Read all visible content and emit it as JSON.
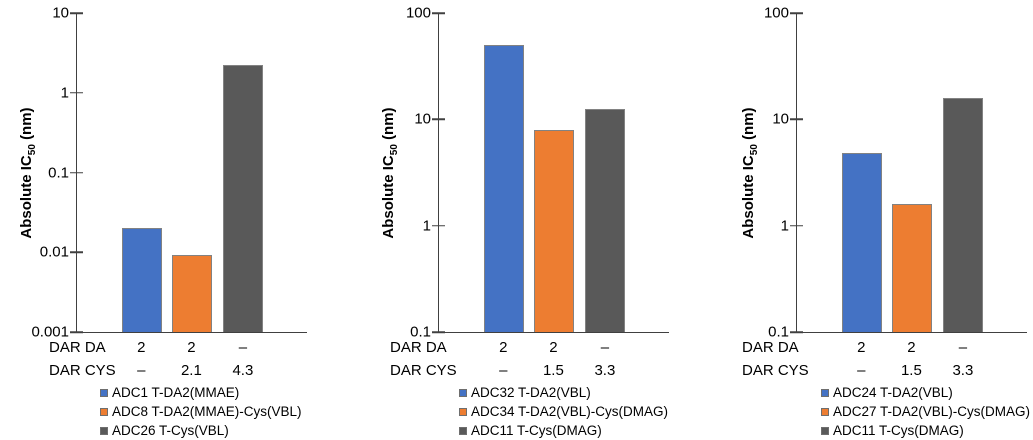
{
  "chart_data": [
    {
      "type": "bar",
      "log_scale": true,
      "grid": false,
      "legend_position": "bottom",
      "ylabel_prefix": "Absolute IC",
      "ylabel_sub": "50",
      "ylabel_suffix": " (nm)",
      "xlabel": "",
      "ylim": [
        0.001,
        10
      ],
      "yticks": [
        "10",
        "1",
        "0.1",
        "0.01",
        "0.001"
      ],
      "categories": [
        "ADC1 T-DA2(MMAE)",
        "ADC8 T-DA2(MMAE)-Cys(VBL)",
        "ADC26 T-Cys(VBL)"
      ],
      "values": [
        0.02,
        0.0093,
        2.2
      ],
      "bar_colors": [
        "#4472c4",
        "#ed7d31",
        "#595959"
      ],
      "rows": [
        {
          "label": "DAR DA",
          "values": [
            "2",
            "2",
            "–"
          ]
        },
        {
          "label": "DAR CYS",
          "values": [
            "–",
            "2.1",
            "4.3"
          ]
        }
      ],
      "legend": [
        {
          "label": "ADC1 T-DA2(MMAE)",
          "color": "#4472c4"
        },
        {
          "label": "ADC8 T-DA2(MMAE)-Cys(VBL)",
          "color": "#ed7d31"
        },
        {
          "label": "ADC26 T-Cys(VBL)",
          "color": "#595959"
        }
      ]
    },
    {
      "type": "bar",
      "log_scale": true,
      "grid": false,
      "legend_position": "bottom",
      "ylabel_prefix": "Absolute IC",
      "ylabel_sub": "50",
      "ylabel_suffix": " (nm)",
      "xlabel": "",
      "ylim": [
        0.1,
        100
      ],
      "yticks": [
        "100",
        "10",
        "1",
        "0.1"
      ],
      "categories": [
        "ADC32 T-DA2(VBL)",
        "ADC34 T-DA2(VBL)-Cys(DMAG)",
        "ADC11 T-Cys(DMAG)"
      ],
      "values": [
        50,
        8,
        12.5
      ],
      "bar_colors": [
        "#4472c4",
        "#ed7d31",
        "#595959"
      ],
      "rows": [
        {
          "label": "DAR DA",
          "values": [
            "2",
            "2",
            "–"
          ]
        },
        {
          "label": "DAR CYS",
          "values": [
            "–",
            "1.5",
            "3.3"
          ]
        }
      ],
      "legend": [
        {
          "label": "ADC32 T-DA2(VBL)",
          "color": "#4472c4"
        },
        {
          "label": "ADC34 T-DA2(VBL)-Cys(DMAG)",
          "color": "#ed7d31"
        },
        {
          "label": "ADC11 T-Cys(DMAG)",
          "color": "#595959"
        }
      ]
    },
    {
      "type": "bar",
      "log_scale": true,
      "grid": false,
      "legend_position": "bottom",
      "ylabel_prefix": "Absolute IC",
      "ylabel_sub": "50",
      "ylabel_suffix": " (nm)",
      "xlabel": "",
      "ylim": [
        0.1,
        100
      ],
      "yticks": [
        "100",
        "10",
        "1",
        "0.1"
      ],
      "categories": [
        "ADC24 T-DA2(VBL)",
        "ADC27 T-DA2(VBL)-Cys(DMAG)",
        "ADC11 T-Cys(DMAG)"
      ],
      "values": [
        4.8,
        1.6,
        16
      ],
      "bar_colors": [
        "#4472c4",
        "#ed7d31",
        "#595959"
      ],
      "rows": [
        {
          "label": "DAR DA",
          "values": [
            "2",
            "2",
            "–"
          ]
        },
        {
          "label": "DAR CYS",
          "values": [
            "–",
            "1.5",
            "3.3"
          ]
        }
      ],
      "legend": [
        {
          "label": "ADC24 T-DA2(VBL)",
          "color": "#4472c4"
        },
        {
          "label": "ADC27 T-DA2(VBL)-Cys(DMAG)",
          "color": "#ed7d31"
        },
        {
          "label": "ADC11 T-Cys(DMAG)",
          "color": "#595959"
        }
      ]
    }
  ]
}
